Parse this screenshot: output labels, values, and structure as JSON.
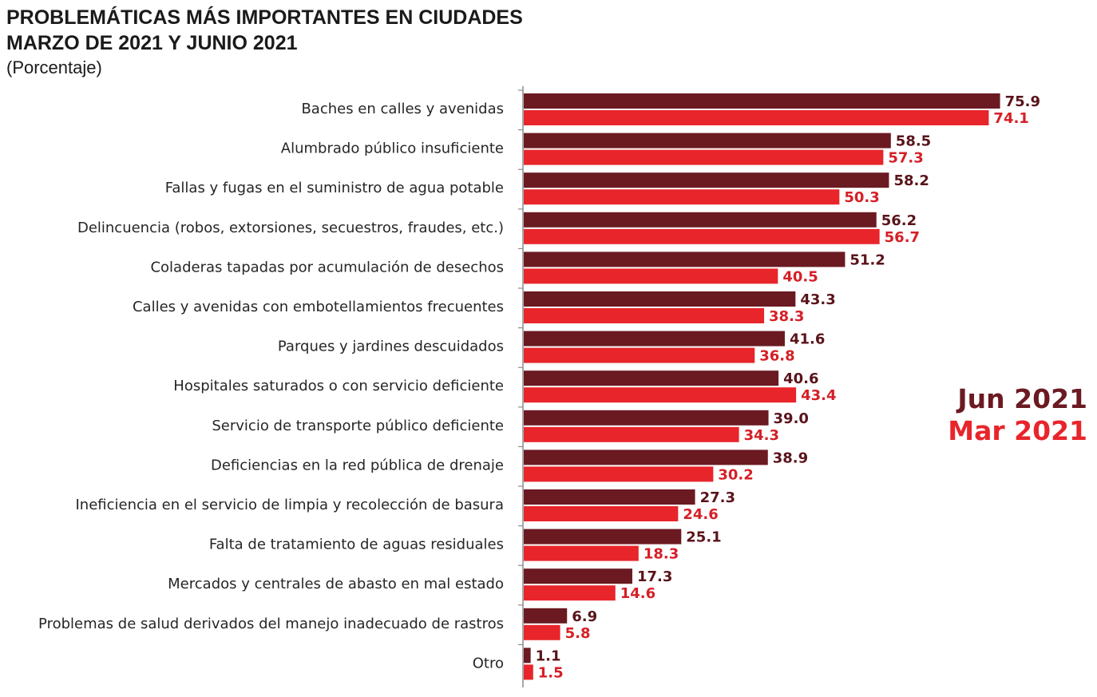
{
  "chart_data": {
    "type": "bar",
    "orientation": "horizontal",
    "title": [
      "PROBLEMÁTICAS MÁS IMPORTANTES EN CIUDADES",
      "MARZO DE 2021 Y JUNIO 2021"
    ],
    "subtitle": "(Porcentaje)",
    "xlim": [
      0,
      80
    ],
    "grid": false,
    "legend_position": "right",
    "categories": [
      "Baches en calles y avenidas",
      "Alumbrado público insuficiente",
      "Fallas y fugas en el suministro de agua potable",
      "Delincuencia (robos, extorsiones, secuestros, fraudes, etc.)",
      "Coladeras tapadas por acumulación de desechos",
      "Calles y avenidas con embotellamientos frecuentes",
      "Parques y jardines descuidados",
      "Hospitales saturados o con servicio deficiente",
      "Servicio de transporte público deficiente",
      "Deficiencias en la red pública de drenaje",
      "Ineficiencia en el servicio de limpia y recolección de basura",
      "Falta de tratamiento de aguas residuales",
      "Mercados y centrales de abasto en mal estado",
      "Problemas de salud derivados del manejo inadecuado de rastros",
      "Otro"
    ],
    "series": [
      {
        "name": "Jun 2021",
        "color": "#6b1a22",
        "values": [
          75.9,
          58.5,
          58.2,
          56.2,
          51.2,
          43.3,
          41.6,
          40.6,
          39.0,
          38.9,
          27.3,
          25.1,
          17.3,
          6.9,
          1.1
        ],
        "labels": [
          "75.9",
          "58.5",
          "58.2",
          "56.2",
          "51.2",
          "43.3",
          "41.6",
          "40.6",
          "39.0",
          "38.9",
          "27.3",
          "25.1",
          "17.3",
          "6.9",
          "1.1"
        ],
        "label_color": "#5a141b"
      },
      {
        "name": "Mar 2021",
        "color": "#e8252b",
        "values": [
          74.1,
          57.3,
          50.3,
          56.7,
          40.5,
          38.3,
          36.8,
          43.4,
          34.3,
          30.2,
          24.6,
          18.3,
          14.6,
          5.8,
          1.5
        ],
        "labels": [
          "74.1",
          "57.3",
          "50.3",
          "56.7",
          "40.5",
          "38.3",
          "36.8",
          "43.4",
          "34.3",
          "30.2",
          "24.6",
          "18.3",
          "14.6",
          "5.8",
          "1.5"
        ],
        "label_color": "#d61f26"
      }
    ]
  }
}
